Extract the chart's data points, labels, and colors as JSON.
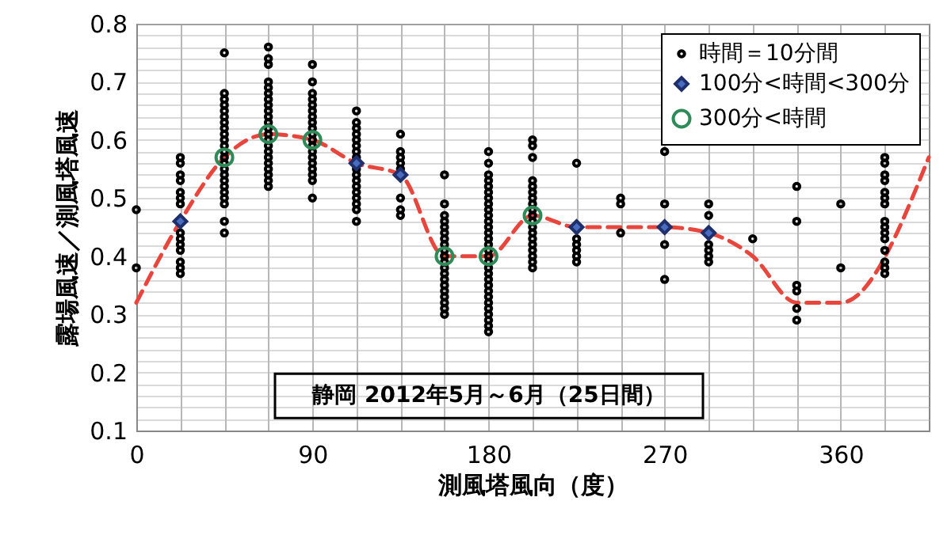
{
  "chart_data": {
    "type": "scatter",
    "xlabel": "測風塔風向（度）",
    "ylabel": "露場風速／測風塔風速",
    "annotations": [
      "静岡 2012年5月～6月（25日間）"
    ],
    "xlim": [
      0,
      405
    ],
    "ylim": [
      0.1,
      0.8
    ],
    "xticks": [
      0,
      {
        "value": 22.5,
        "label": null
      },
      {
        "value": 45,
        "label": null
      },
      {
        "value": 67.5,
        "label": null
      },
      90,
      {
        "value": 112.5,
        "label": null
      },
      {
        "value": 135,
        "label": null
      },
      {
        "value": 157.5,
        "label": null
      },
      180,
      {
        "value": 202.5,
        "label": null
      },
      {
        "value": 225,
        "label": null
      },
      {
        "value": 247.5,
        "label": null
      },
      270,
      {
        "value": 292.5,
        "label": null
      },
      {
        "value": 315,
        "label": null
      },
      {
        "value": 337.5,
        "label": null
      },
      360,
      {
        "value": 382.5,
        "label": null
      }
    ],
    "yticks": [
      0.1,
      {
        "value": 0.12,
        "label": null
      },
      {
        "value": 0.14,
        "label": null
      },
      {
        "value": 0.16,
        "label": null
      },
      {
        "value": 0.18,
        "label": null
      },
      0.2,
      {
        "value": 0.22,
        "label": null
      },
      {
        "value": 0.24,
        "label": null
      },
      {
        "value": 0.26,
        "label": null
      },
      {
        "value": 0.28,
        "label": null
      },
      0.3,
      {
        "value": 0.32,
        "label": null
      },
      {
        "value": 0.34,
        "label": null
      },
      {
        "value": 0.36,
        "label": null
      },
      {
        "value": 0.38,
        "label": null
      },
      0.4,
      {
        "value": 0.42,
        "label": null
      },
      {
        "value": 0.44,
        "label": null
      },
      {
        "value": 0.46,
        "label": null
      },
      {
        "value": 0.48,
        "label": null
      },
      0.5,
      {
        "value": 0.52,
        "label": null
      },
      {
        "value": 0.54,
        "label": null
      },
      {
        "value": 0.56,
        "label": null
      },
      {
        "value": 0.58,
        "label": null
      },
      0.6,
      {
        "value": 0.62,
        "label": null
      },
      {
        "value": 0.64,
        "label": null
      },
      {
        "value": 0.66,
        "label": null
      },
      {
        "value": 0.68,
        "label": null
      },
      0.7,
      {
        "value": 0.72,
        "label": null
      },
      {
        "value": 0.74,
        "label": null
      },
      {
        "value": 0.76,
        "label": null
      },
      {
        "value": 0.78,
        "label": null
      },
      0.8
    ],
    "grid": true,
    "legend": "top right",
    "series": [
      {
        "type": "line",
        "color": "#e8453c",
        "line_style": "dashed",
        "marker": "none",
        "x": [
          0,
          22.5,
          45,
          67.5,
          90,
          112.5,
          135,
          157.5,
          180,
          202.5,
          225,
          247.5,
          270,
          292.5,
          315,
          337.5,
          360,
          405
        ],
        "values": [
          0.32,
          0.46,
          0.57,
          0.61,
          0.6,
          0.56,
          0.54,
          0.4,
          0.4,
          0.47,
          0.45,
          0.45,
          0.45,
          0.44,
          0.4,
          0.32,
          0.32,
          0.57
        ]
      },
      {
        "name": "時間＝10分間",
        "color": "#000000",
        "marker": "circle",
        "x": [
          0,
          0,
          22.5,
          22.5,
          22.5,
          22.5,
          22.5,
          22.5,
          22.5,
          22.5,
          22.5,
          22.5,
          22.5,
          22.5,
          22.5,
          22.5,
          45,
          45,
          45,
          45,
          45,
          45,
          45,
          45,
          45,
          45,
          45,
          45,
          45,
          45,
          45,
          45,
          45,
          45,
          45,
          45,
          45,
          45,
          45,
          67.5,
          67.5,
          67.5,
          67.5,
          67.5,
          67.5,
          67.5,
          67.5,
          67.5,
          67.5,
          67.5,
          67.5,
          67.5,
          67.5,
          67.5,
          67.5,
          67.5,
          67.5,
          67.5,
          67.5,
          67.5,
          67.5,
          90,
          90,
          90,
          90,
          90,
          90,
          90,
          90,
          90,
          90,
          90,
          90,
          90,
          90,
          90,
          90,
          90,
          90,
          90,
          112.5,
          112.5,
          112.5,
          112.5,
          112.5,
          112.5,
          112.5,
          112.5,
          112.5,
          112.5,
          112.5,
          112.5,
          112.5,
          112.5,
          112.5,
          112.5,
          112.5,
          135,
          135,
          135,
          135,
          135,
          135,
          135,
          135,
          157.5,
          157.5,
          157.5,
          157.5,
          157.5,
          157.5,
          157.5,
          157.5,
          157.5,
          157.5,
          157.5,
          157.5,
          157.5,
          157.5,
          157.5,
          157.5,
          157.5,
          157.5,
          157.5,
          157.5,
          180,
          180,
          180,
          180,
          180,
          180,
          180,
          180,
          180,
          180,
          180,
          180,
          180,
          180,
          180,
          180,
          180,
          180,
          180,
          180,
          180,
          180,
          180,
          180,
          180,
          180,
          180,
          180,
          180,
          180,
          202.5,
          202.5,
          202.5,
          202.5,
          202.5,
          202.5,
          202.5,
          202.5,
          202.5,
          202.5,
          202.5,
          202.5,
          202.5,
          202.5,
          202.5,
          202.5,
          202.5,
          202.5,
          202.5,
          225,
          225,
          225,
          225,
          225,
          225,
          247.5,
          247.5,
          247.5,
          270,
          270,
          270,
          270,
          292.5,
          292.5,
          292.5,
          292.5,
          292.5,
          292.5,
          315,
          337.5,
          337.5,
          337.5,
          337.5,
          337.5,
          337.5,
          360,
          360,
          382.5,
          382.5,
          382.5,
          382.5,
          382.5,
          382.5,
          382.5,
          382.5,
          382.5,
          382.5,
          382.5,
          382.5,
          382.5,
          382.5,
          382.5
        ],
        "values": [
          0.48,
          0.38,
          0.57,
          0.56,
          0.54,
          0.53,
          0.51,
          0.5,
          0.49,
          0.44,
          0.43,
          0.42,
          0.41,
          0.39,
          0.38,
          0.37,
          0.75,
          0.68,
          0.67,
          0.66,
          0.65,
          0.64,
          0.63,
          0.62,
          0.61,
          0.6,
          0.59,
          0.58,
          0.57,
          0.56,
          0.55,
          0.54,
          0.53,
          0.52,
          0.51,
          0.5,
          0.49,
          0.46,
          0.44,
          0.76,
          0.74,
          0.73,
          0.7,
          0.69,
          0.68,
          0.67,
          0.66,
          0.65,
          0.64,
          0.63,
          0.62,
          0.61,
          0.6,
          0.59,
          0.58,
          0.57,
          0.56,
          0.55,
          0.54,
          0.53,
          0.52,
          0.73,
          0.7,
          0.68,
          0.67,
          0.66,
          0.65,
          0.64,
          0.63,
          0.62,
          0.61,
          0.6,
          0.59,
          0.58,
          0.57,
          0.56,
          0.55,
          0.54,
          0.53,
          0.5,
          0.65,
          0.63,
          0.62,
          0.61,
          0.6,
          0.59,
          0.58,
          0.57,
          0.55,
          0.54,
          0.53,
          0.52,
          0.51,
          0.5,
          0.49,
          0.48,
          0.46,
          0.61,
          0.58,
          0.57,
          0.56,
          0.55,
          0.5,
          0.48,
          0.47,
          0.54,
          0.49,
          0.47,
          0.46,
          0.45,
          0.44,
          0.43,
          0.42,
          0.41,
          0.4,
          0.39,
          0.38,
          0.37,
          0.36,
          0.35,
          0.34,
          0.33,
          0.32,
          0.31,
          0.3,
          0.58,
          0.56,
          0.54,
          0.53,
          0.52,
          0.51,
          0.5,
          0.49,
          0.48,
          0.47,
          0.46,
          0.45,
          0.44,
          0.43,
          0.42,
          0.41,
          0.4,
          0.39,
          0.38,
          0.37,
          0.36,
          0.35,
          0.34,
          0.33,
          0.32,
          0.31,
          0.3,
          0.29,
          0.28,
          0.27,
          0.6,
          0.59,
          0.57,
          0.53,
          0.52,
          0.51,
          0.5,
          0.49,
          0.48,
          0.47,
          0.46,
          0.45,
          0.44,
          0.43,
          0.42,
          0.41,
          0.4,
          0.39,
          0.38,
          0.56,
          0.43,
          0.42,
          0.41,
          0.4,
          0.39,
          0.5,
          0.49,
          0.44,
          0.58,
          0.49,
          0.42,
          0.36,
          0.49,
          0.47,
          0.42,
          0.41,
          0.4,
          0.39,
          0.43,
          0.52,
          0.46,
          0.35,
          0.34,
          0.31,
          0.29,
          0.49,
          0.38,
          0.57,
          0.56,
          0.54,
          0.53,
          0.51,
          0.5,
          0.49,
          0.46,
          0.45,
          0.44,
          0.43,
          0.41,
          0.39,
          0.38,
          0.37
        ]
      },
      {
        "name": "100分<時間<300分",
        "color": "#4a6cc0",
        "marker": "diamond",
        "x": [
          22.5,
          112.5,
          135,
          225,
          270,
          292.5
        ],
        "values": [
          0.46,
          0.56,
          0.54,
          0.45,
          0.45,
          0.44
        ]
      },
      {
        "name": "300分<時間",
        "color": "#2e8b57",
        "marker": "circle",
        "x": [
          45,
          67.5,
          90,
          157.5,
          180,
          202.5
        ],
        "values": [
          0.57,
          0.61,
          0.6,
          0.4,
          0.4,
          0.47
        ]
      }
    ]
  }
}
